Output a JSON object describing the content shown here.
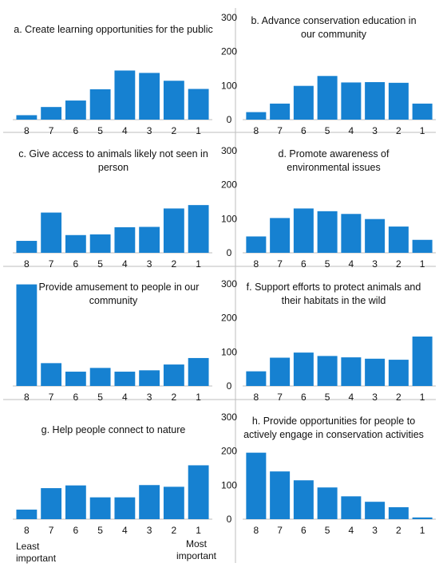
{
  "colors": {
    "bar": "#1681d1",
    "divider": "#bdbdbd",
    "axis": "#bdbdbd"
  },
  "y_axis": {
    "ticks": [
      "300",
      "200",
      "100",
      "0"
    ]
  },
  "annotations": {
    "least": [
      "Least",
      "important"
    ],
    "most": [
      "Most",
      "important"
    ]
  },
  "chart_data": [
    {
      "type": "bar",
      "title": [
        "a. Create learning opportunities for the public"
      ],
      "categories": [
        "8",
        "7",
        "6",
        "5",
        "4",
        "3",
        "2",
        "1"
      ],
      "values": [
        13,
        37,
        56,
        89,
        144,
        137,
        114,
        90
      ],
      "ylim": [
        0,
        300
      ]
    },
    {
      "type": "bar",
      "title": [
        "b. Advance conservation education in",
        "our community"
      ],
      "categories": [
        "8",
        "7",
        "6",
        "5",
        "4",
        "3",
        "2",
        "1"
      ],
      "values": [
        22,
        47,
        99,
        128,
        109,
        110,
        108,
        47
      ],
      "ylim": [
        0,
        300
      ]
    },
    {
      "type": "bar",
      "title": [
        "c. Give access to animals likely not seen in",
        "person"
      ],
      "categories": [
        "8",
        "7",
        "6",
        "5",
        "4",
        "3",
        "2",
        "1"
      ],
      "values": [
        35,
        118,
        52,
        54,
        75,
        76,
        130,
        140
      ],
      "ylim": [
        0,
        300
      ]
    },
    {
      "type": "bar",
      "title": [
        "d. Promote awareness of",
        "environmental issues"
      ],
      "categories": [
        "8",
        "7",
        "6",
        "5",
        "4",
        "3",
        "2",
        "1"
      ],
      "values": [
        48,
        102,
        130,
        122,
        114,
        99,
        77,
        38
      ],
      "ylim": [
        0,
        300
      ]
    },
    {
      "type": "bar",
      "title": [
        "e. Provide amusement to people in our",
        "community"
      ],
      "categories": [
        "8",
        "7",
        "6",
        "5",
        "4",
        "3",
        "2",
        "1"
      ],
      "values": [
        298,
        67,
        42,
        53,
        42,
        46,
        63,
        82
      ],
      "ylim": [
        0,
        300
      ]
    },
    {
      "type": "bar",
      "title": [
        "f. Support efforts to protect animals and",
        "their habitats in the wild"
      ],
      "categories": [
        "8",
        "7",
        "6",
        "5",
        "4",
        "3",
        "2",
        "1"
      ],
      "values": [
        43,
        83,
        98,
        88,
        84,
        80,
        77,
        145
      ],
      "ylim": [
        0,
        300
      ]
    },
    {
      "type": "bar",
      "title": [
        "g. Help people connect to nature"
      ],
      "categories": [
        "8",
        "7",
        "6",
        "5",
        "4",
        "3",
        "2",
        "1"
      ],
      "values": [
        28,
        91,
        99,
        64,
        64,
        100,
        95,
        158
      ],
      "ylim": [
        0,
        300
      ]
    },
    {
      "type": "bar",
      "title": [
        "h. Provide opportunities for people to",
        "actively engage in conservation activities"
      ],
      "categories": [
        "8",
        "7",
        "6",
        "5",
        "4",
        "3",
        "2",
        "1"
      ],
      "values": [
        195,
        140,
        114,
        93,
        67,
        51,
        35,
        5
      ],
      "ylim": [
        0,
        300
      ]
    }
  ]
}
